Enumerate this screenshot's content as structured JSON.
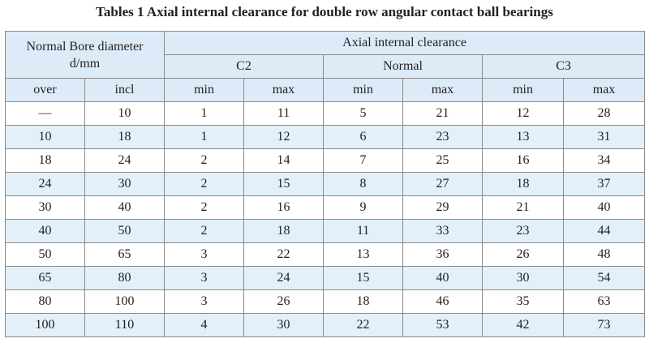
{
  "title": "Tables 1 Axial internal clearance for double row angular contact ball bearings",
  "header": {
    "bore_line1": "Normal Bore diameter",
    "bore_line2": "d/mm",
    "clearance": "Axial internal clearance",
    "groups": [
      "C2",
      "Normal",
      "C3"
    ],
    "sub": [
      "over",
      "incl",
      "min",
      "max",
      "min",
      "max",
      "min",
      "max"
    ]
  },
  "rows": [
    [
      "—",
      "10",
      "1",
      "11",
      "5",
      "21",
      "12",
      "28"
    ],
    [
      "10",
      "18",
      "1",
      "12",
      "6",
      "23",
      "13",
      "31"
    ],
    [
      "18",
      "24",
      "2",
      "14",
      "7",
      "25",
      "16",
      "34"
    ],
    [
      "24",
      "30",
      "2",
      "15",
      "8",
      "27",
      "18",
      "37"
    ],
    [
      "30",
      "40",
      "2",
      "16",
      "9",
      "29",
      "21",
      "40"
    ],
    [
      "40",
      "50",
      "2",
      "18",
      "11",
      "33",
      "23",
      "44"
    ],
    [
      "50",
      "65",
      "3",
      "22",
      "13",
      "36",
      "26",
      "48"
    ],
    [
      "65",
      "80",
      "3",
      "24",
      "15",
      "40",
      "30",
      "54"
    ],
    [
      "80",
      "100",
      "3",
      "26",
      "18",
      "46",
      "35",
      "63"
    ],
    [
      "100",
      "110",
      "4",
      "30",
      "22",
      "53",
      "42",
      "73"
    ]
  ],
  "colors": {
    "header_bg": "#dcebf7",
    "alt_row_bg": "#e3f0fa",
    "border": "#8a8a8a",
    "text": "#231f20"
  }
}
